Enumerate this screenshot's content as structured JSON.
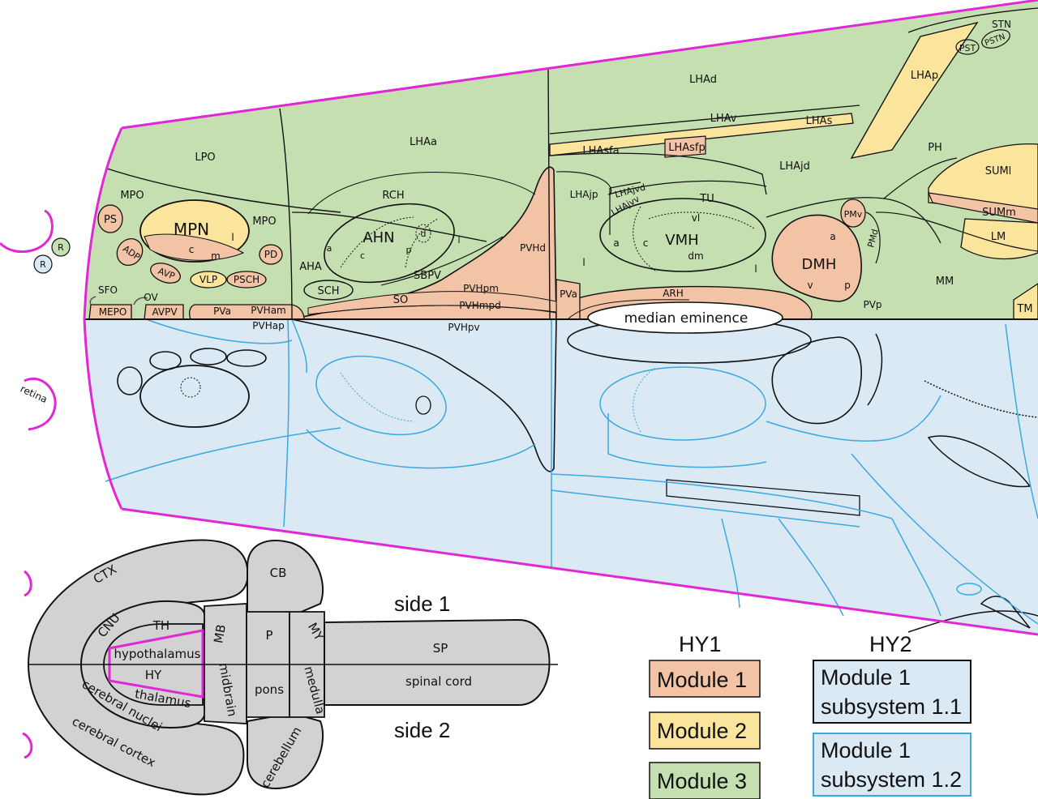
{
  "colors": {
    "module1": "#f2c3a5",
    "module2": "#fbe49c",
    "module3": "#c5dfb1",
    "side2_fill": "#dbe9f4",
    "subsystem12_line": "#39a9e0",
    "outline_magenta": "#e028d6",
    "brain_gray": "#d2d2d2"
  },
  "side1_regions": {
    "lpo": "LPO",
    "lhaa": "LHAa",
    "lhad": "LHAd",
    "lhap": "LHAp",
    "stn": "STN",
    "pst": "PST",
    "pstn": "PSTN",
    "lhav": "LHAv",
    "lhas": "LHAs",
    "lhasfa": "LHAsfa",
    "lhasfp": "LHAsfp",
    "lhajd": "LHAjd",
    "ph": "PH",
    "sumi": "SUMl",
    "summ": "SUMm",
    "lm": "LM",
    "mm": "MM",
    "tm": "TM",
    "mpo_left": "MPO",
    "mpo_right": "MPO",
    "ps": "PS",
    "mpn": "MPN",
    "mpn_c": "c",
    "mpn_m": "m",
    "mpn_l": "l",
    "adp": "ADP",
    "avp": "AVP",
    "vlp": "VLP",
    "psch": "PSCH",
    "pd": "PD",
    "rch": "RCH",
    "ahn": "AHN",
    "ahn_a": "a",
    "ahn_c": "c",
    "ahn_p": "p",
    "ahn_d": "d",
    "ahn_l": "l",
    "aha": "AHA",
    "sch": "SCH",
    "sbpv": "SBPV",
    "so": "SO",
    "pvhd": "PVHd",
    "pvhpm": "PVHpm",
    "pvhmpd": "PVHmpd",
    "pvham": "PVHam",
    "pvhap": "PVHap",
    "pvhpv": "PVHpv",
    "pva_left": "PVa",
    "pva_mid": "PVa",
    "pvp": "PVp",
    "sfo": "SFO",
    "ov": "OV",
    "mepo": "MEPO",
    "avpv": "AVPV",
    "lhajp": "LHAjp",
    "lhajvd": "LHAjvd",
    "lhajvv": "LHAjvv",
    "tu": "TU",
    "vmh": "VMH",
    "vmh_vl": "vl",
    "vmh_a": "a",
    "vmh_c": "c",
    "vmh_dm": "dm",
    "lha_l_left": "l",
    "lha_l_right": "l",
    "arh": "ARH",
    "median_eminence": "median eminence",
    "dmh": "DMH",
    "dmh_a": "a",
    "dmh_v": "v",
    "dmh_p": "p",
    "pmv": "PMv",
    "pmd": "PMd",
    "retina": "retina",
    "r1": "R",
    "r2": "R"
  },
  "brain": {
    "ctx": "CTX",
    "cnu": "CNU",
    "th": "TH",
    "hypothalamus": "hypothalamus",
    "hy": "HY",
    "thalamus": "thalamus",
    "cerebral_nuclei": "cerebral nuclei",
    "cerebral_cortex": "cerebral cortex",
    "mb": "MB",
    "midbrain": "midbrain",
    "cb": "CB",
    "cerebellum": "cerebellum",
    "p": "P",
    "pons": "pons",
    "my": "MY",
    "medulla": "medulla",
    "sp": "SP",
    "spinal_cord": "spinal cord",
    "side1": "side 1",
    "side2": "side 2"
  },
  "legend": {
    "hy1": "HY1",
    "hy2": "HY2",
    "module1": "Module 1",
    "module2": "Module 2",
    "module3": "Module 3",
    "sub11_line1": "Module 1",
    "sub11_line2": "subsystem 1.1",
    "sub12_line1": "Module 1",
    "sub12_line2": "subsystem 1.2"
  }
}
